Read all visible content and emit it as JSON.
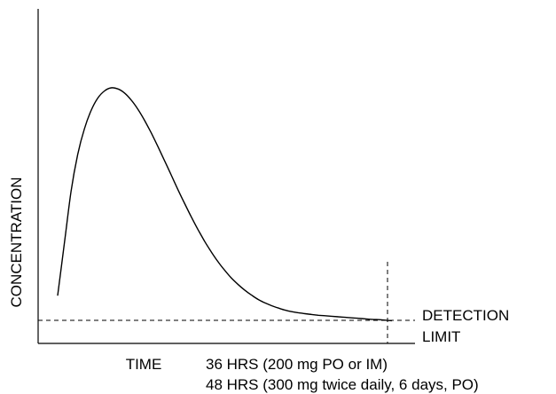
{
  "chart_data": {
    "type": "line",
    "title": "",
    "xlabel": "TIME",
    "ylabel": "CONCENTRATION",
    "axis_ticks": "none",
    "grid": false,
    "series": [
      {
        "values_note": "unlabeled axes; values are relative (x: 0-100 time, y: 0-100 concentration)",
        "x": [
          0,
          2,
          4,
          6,
          8,
          10,
          12,
          14,
          16,
          18,
          20,
          22,
          24,
          26,
          28,
          30,
          32,
          34,
          36,
          38,
          40,
          42,
          44,
          46,
          48,
          50,
          52,
          54,
          56,
          58,
          60,
          62,
          64,
          66,
          68,
          70,
          72,
          74,
          76,
          78,
          80,
          82,
          84,
          86,
          88,
          90,
          92,
          94,
          96,
          98,
          100
        ],
        "y": [
          8.2,
          28.3,
          48.6,
          62.9,
          72.9,
          80.0,
          84.8,
          87.6,
          88.8,
          88.4,
          86.8,
          84.1,
          80.5,
          76.2,
          71.3,
          66.0,
          60.5,
          54.9,
          49.3,
          43.9,
          38.7,
          33.8,
          29.2,
          25.1,
          21.3,
          18.0,
          15.0,
          12.5,
          10.3,
          8.4,
          6.7,
          5.4,
          4.3,
          3.4,
          2.6,
          2.0,
          1.6,
          1.2,
          0.9,
          0.6,
          0.4,
          0.2,
          0.0,
          -0.2,
          -0.4,
          -0.6,
          -0.8,
          -1.0,
          -1.1,
          -1.3,
          -1.5
        ]
      }
    ],
    "detection_limit": {
      "label": [
        "DETECTION",
        "LIMIT"
      ],
      "y": -3.0,
      "style": "dashed"
    },
    "end_marker": {
      "x": 100,
      "style": "dashed",
      "labels": [
        "36 HRS (200 mg PO or IM)",
        "48 HRS (300 mg twice daily, 6 days, PO)"
      ]
    }
  }
}
